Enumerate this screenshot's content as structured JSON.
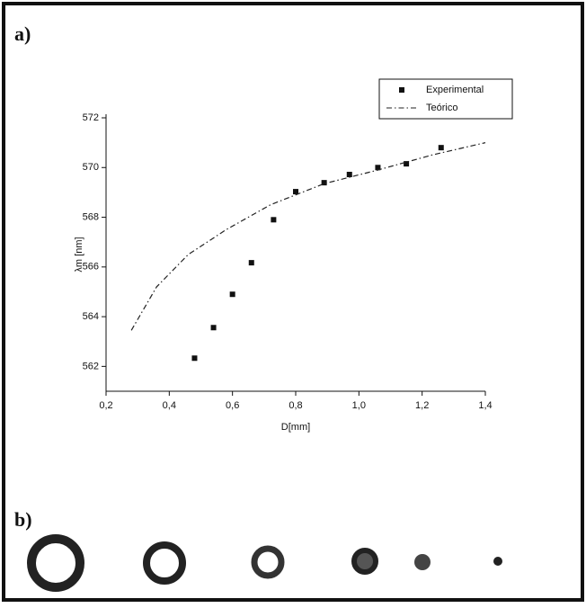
{
  "panel_a": "a)",
  "panel_b": "b)",
  "chart_data": {
    "type": "scatter_line",
    "x_label": "D[mm]",
    "y_label": "λm [nm]",
    "xlim": [
      0.2,
      1.4
    ],
    "ylim": [
      561,
      572
    ],
    "xticks": [
      {
        "value": 0.2,
        "label": "0,2"
      },
      {
        "value": 0.4,
        "label": "0,4"
      },
      {
        "value": 0.6,
        "label": "0,6"
      },
      {
        "value": 0.8,
        "label": "0,8"
      },
      {
        "value": 1.0,
        "label": "1,0"
      },
      {
        "value": 1.2,
        "label": "1,2"
      },
      {
        "value": 1.4,
        "label": "1,4"
      }
    ],
    "yticks": [
      562,
      564,
      566,
      568,
      570,
      572
    ],
    "legend": "upper right",
    "series": [
      {
        "name": "Experimental",
        "kind": "markers",
        "color": "#111111",
        "x": [
          0.48,
          0.54,
          0.6,
          0.66,
          0.73,
          0.8,
          0.89,
          0.97,
          1.06,
          1.15,
          1.26
        ],
        "values": [
          562.33,
          563.56,
          564.9,
          566.17,
          567.9,
          569.03,
          569.39,
          569.72,
          570.0,
          570.15,
          570.8
        ]
      },
      {
        "name": "Teórico",
        "kind": "dashdot",
        "color": "#222222",
        "x": [
          0.28,
          0.36,
          0.46,
          0.58,
          0.72,
          0.89,
          1.06,
          1.23,
          1.4
        ],
        "values": [
          563.45,
          565.2,
          566.5,
          567.5,
          568.5,
          569.35,
          569.9,
          570.5,
          571.0
        ]
      }
    ]
  }
}
